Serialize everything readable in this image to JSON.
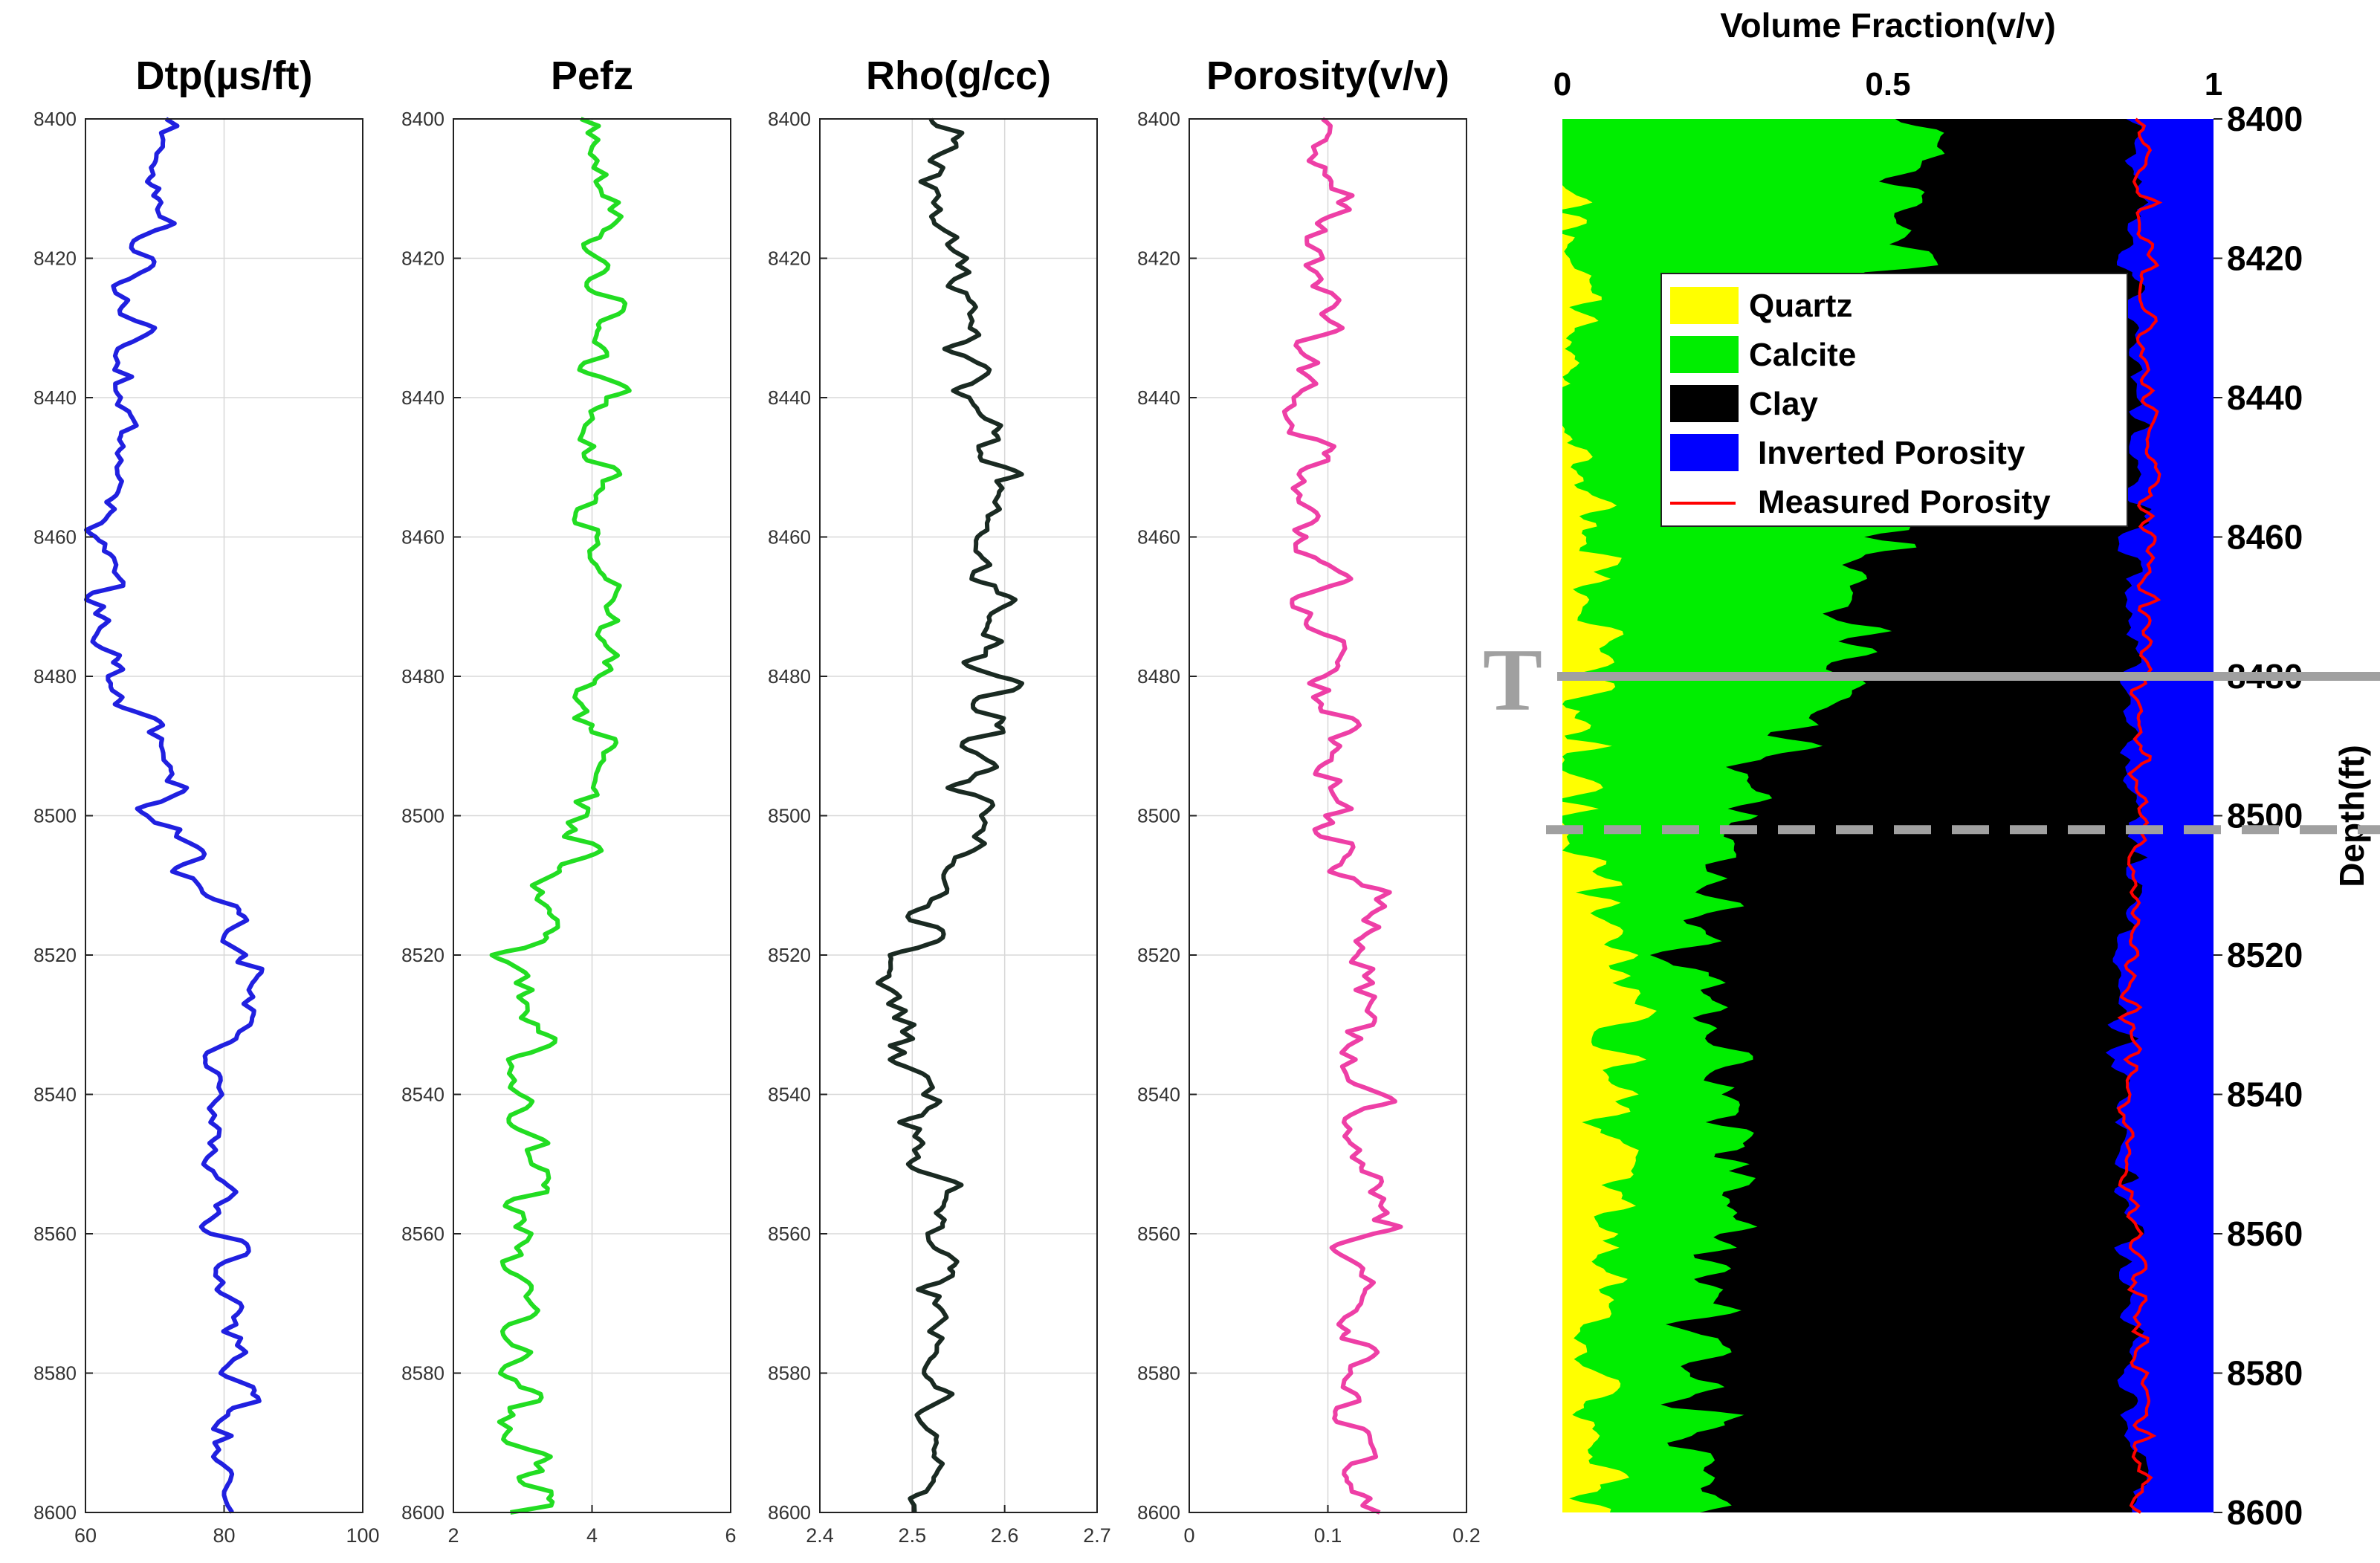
{
  "chart_data": {
    "type": "line",
    "depth": {
      "label": "Depth(ft)",
      "range": [
        8400,
        8600
      ],
      "ticks": [
        8400,
        8420,
        8440,
        8460,
        8480,
        8500,
        8520,
        8540,
        8560,
        8580,
        8600
      ],
      "tick_labels": [
        "8400",
        "8420",
        "8440",
        "8460",
        "8480",
        "8500",
        "8520",
        "8540",
        "8560",
        "8580",
        "8600"
      ],
      "knots": [
        8400,
        8420,
        8440,
        8460,
        8480,
        8500,
        8520,
        8540,
        8560,
        8580,
        8600
      ]
    },
    "tracks": [
      {
        "name": "dtp",
        "title": "Dtp(µs/ft)",
        "color": "#2020e0",
        "xlim": [
          60,
          100
        ],
        "xticks": [
          60,
          80,
          100
        ],
        "xtick_labels": [
          "60",
          "80",
          "100"
        ],
        "grid_x": [
          80
        ],
        "base": [
          74,
          68,
          66,
          63,
          65,
          72,
          84,
          78,
          81,
          82,
          82
        ],
        "amp": 4,
        "seed": 11
      },
      {
        "name": "pefz",
        "title": "Pefz",
        "color": "#22dd22",
        "xlim": [
          2,
          6
        ],
        "xticks": [
          2,
          4,
          6
        ],
        "xtick_labels": [
          "2",
          "4",
          "6"
        ],
        "grid_x": [
          4
        ],
        "base": [
          4.1,
          4.1,
          4.2,
          4.1,
          4.1,
          4.0,
          3.0,
          3.1,
          3.1,
          3.1,
          3.1
        ],
        "amp": 0.45,
        "seed": 23
      },
      {
        "name": "rho",
        "title": "Rho(g/cc)",
        "color": "#1a2a22",
        "xlim": [
          2.4,
          2.7
        ],
        "xticks": [
          2.4,
          2.5,
          2.6,
          2.7
        ],
        "xtick_labels": [
          "2.4",
          "2.5",
          "2.6",
          "2.7"
        ],
        "grid_x": [
          2.5,
          2.6
        ],
        "base": [
          2.54,
          2.55,
          2.58,
          2.59,
          2.58,
          2.57,
          2.49,
          2.5,
          2.53,
          2.54,
          2.52
        ],
        "amp": 0.035,
        "seed": 37
      },
      {
        "name": "porosity",
        "title": "Porosity(v/v)",
        "color": "#ee3fa6",
        "xlim": [
          0,
          0.2
        ],
        "xticks": [
          0,
          0.1,
          0.2
        ],
        "xtick_labels": [
          "0",
          "0.1",
          "0.2"
        ],
        "grid_x": [
          0.1
        ],
        "base": [
          0.11,
          0.1,
          0.09,
          0.09,
          0.1,
          0.11,
          0.14,
          0.13,
          0.13,
          0.12,
          0.12
        ],
        "amp": 0.025,
        "seed": 53
      }
    ],
    "volume": {
      "title": "Volume Fraction(v/v)",
      "xlim": [
        0,
        1
      ],
      "xticks": [
        0,
        0.5,
        1
      ],
      "xtick_labels": [
        "0",
        "0.5",
        "1"
      ],
      "quartz_top": [
        0.02,
        0.03,
        0.03,
        0.04,
        0.05,
        0.02,
        0.1,
        0.08,
        0.06,
        0.05,
        0.05
      ],
      "calcite_top": [
        0.55,
        0.5,
        0.52,
        0.5,
        0.45,
        0.25,
        0.2,
        0.25,
        0.25,
        0.22,
        0.2
      ],
      "clay_top": [
        0.88,
        0.87,
        0.88,
        0.88,
        0.87,
        0.88,
        0.86,
        0.86,
        0.87,
        0.88,
        0.88
      ],
      "measured_porosity_line": [
        0.89,
        0.9,
        0.9,
        0.9,
        0.89,
        0.89,
        0.87,
        0.87,
        0.88,
        0.89,
        0.89
      ],
      "markers": [
        {
          "label": "T",
          "depth": 8480,
          "style": "solid",
          "color": "#a0a0a0"
        },
        {
          "label": "",
          "depth": 8502,
          "style": "dashed",
          "color": "#a0a0a0"
        }
      ],
      "legend_position": "top-center",
      "legend": [
        {
          "label": "Quartz",
          "color": "#ffff00",
          "kind": "patch"
        },
        {
          "label": "Calcite",
          "color": "#00ee00",
          "kind": "patch"
        },
        {
          "label": "Clay",
          "color": "#000000",
          "kind": "patch"
        },
        {
          "label": "Inverted Porosity",
          "color": "#0000ff",
          "kind": "patch"
        },
        {
          "label": "Measured Porosity",
          "color": "#ff0000",
          "kind": "line"
        }
      ]
    }
  }
}
